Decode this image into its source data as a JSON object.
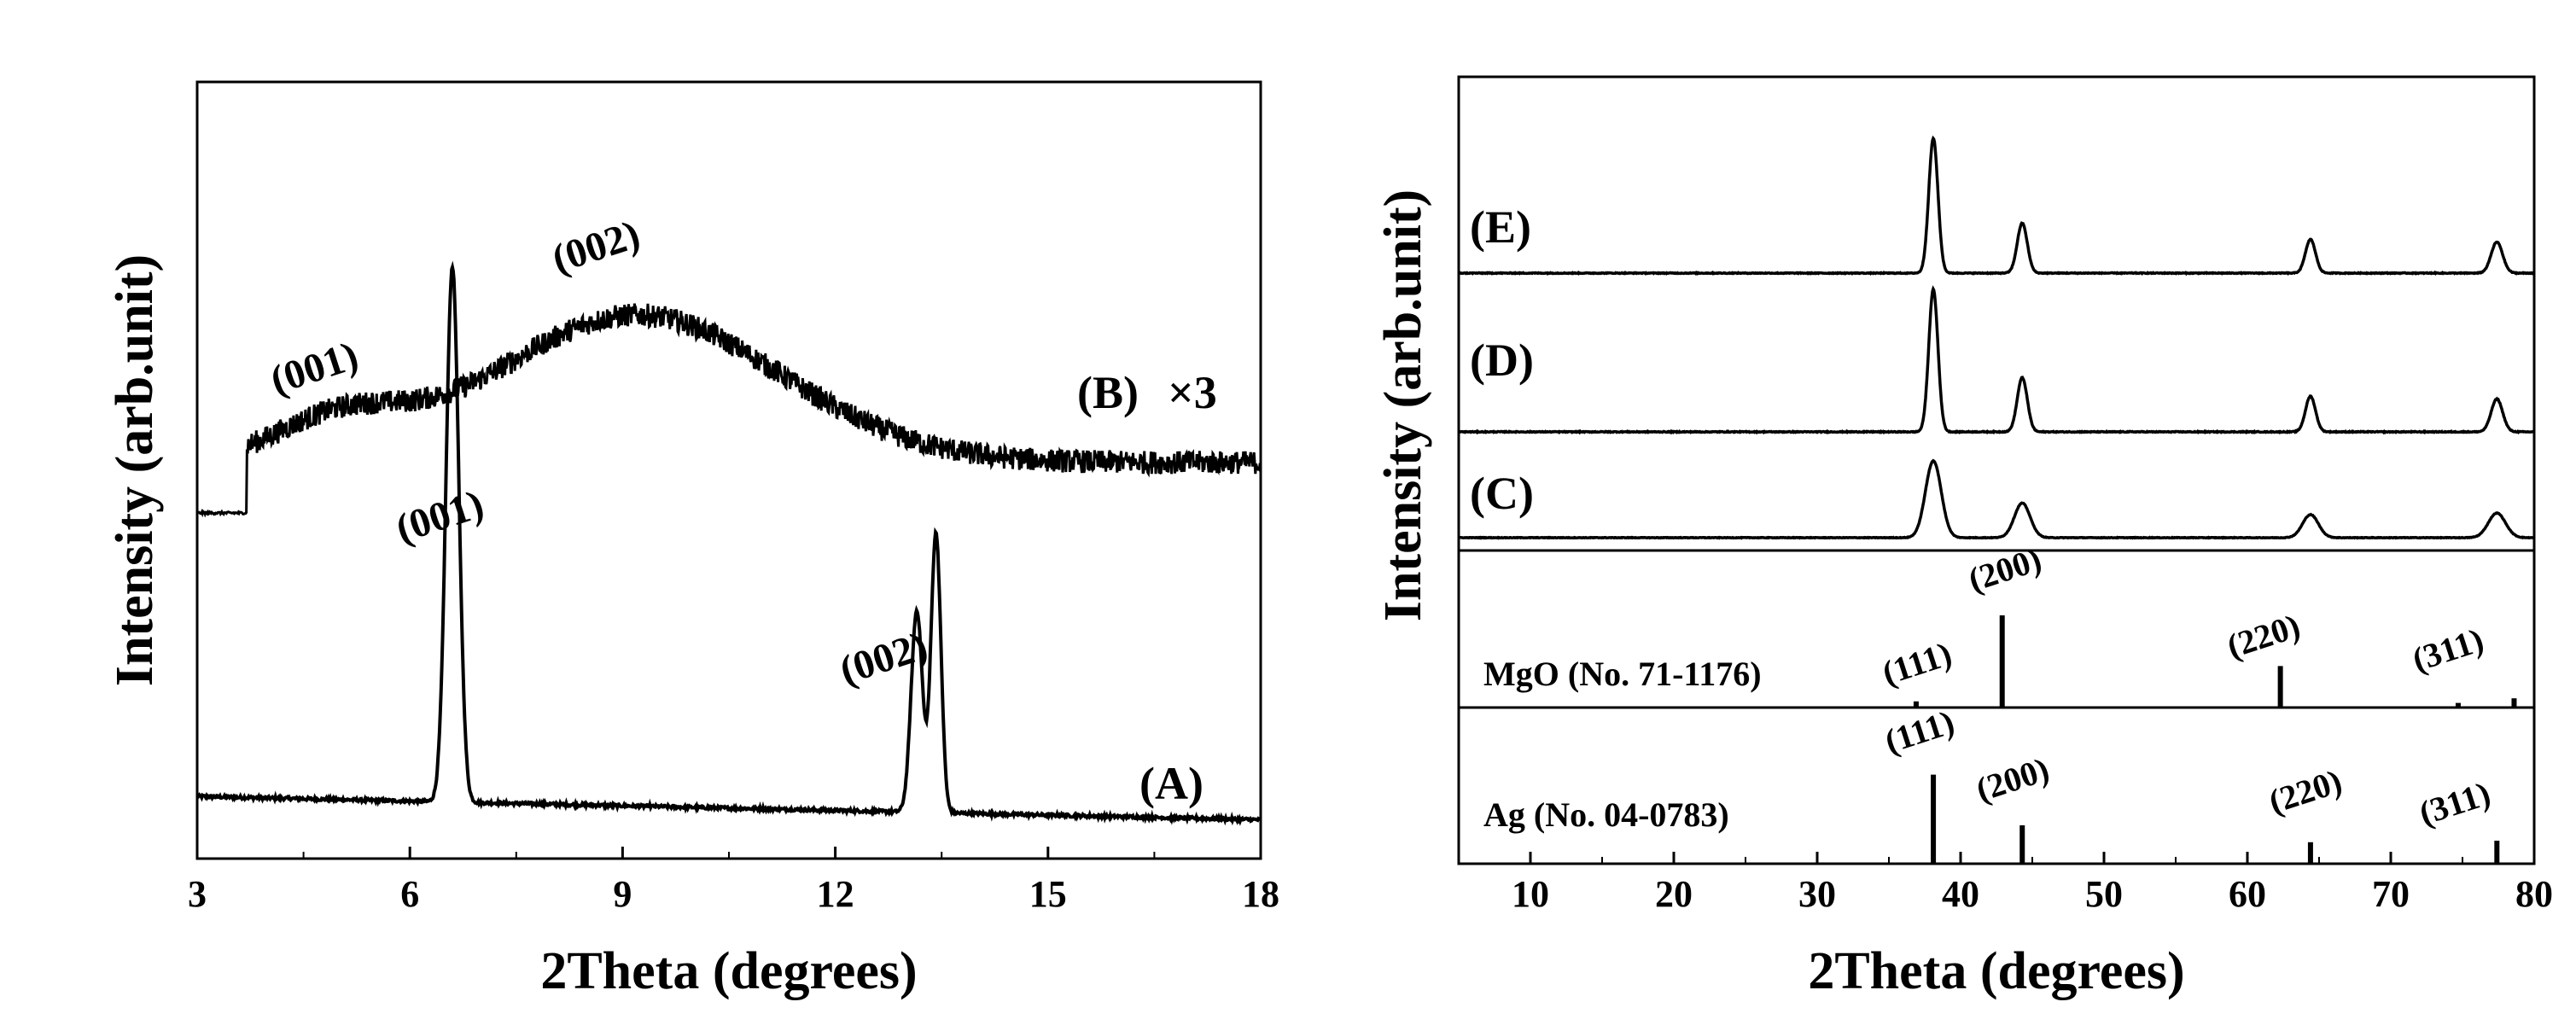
{
  "chart_data": [
    {
      "id": "left",
      "type": "line",
      "xlabel": "2Theta (degrees)",
      "ylabel": "Intensity (arb.unit)",
      "xlim": [
        3,
        18
      ],
      "xticks": [
        3,
        6,
        9,
        12,
        15,
        18
      ],
      "series": [
        {
          "name": "(A)",
          "label": "(A)",
          "baseline": 0.08,
          "noise": 0.004,
          "peaks": [
            {
              "center": 6.6,
              "height": 0.69,
              "width": 0.09
            },
            {
              "center": 13.15,
              "height": 0.26,
              "width": 0.08
            },
            {
              "center": 13.42,
              "height": 0.36,
              "width": 0.07
            }
          ],
          "peak_labels": [
            {
              "text": "(001)",
              "x": 6.6
            },
            {
              "text": "(002)",
              "x": 13.3
            }
          ]
        },
        {
          "name": "(B)",
          "label": "(B)",
          "multiplier_label": "×3",
          "baseline": 0.5,
          "noise": 0.03,
          "start_x": 3.0,
          "broad_humps": [
            {
              "center": 5.0,
              "height": 0.05,
              "width": 0.9
            },
            {
              "center": 9.2,
              "height": 0.19,
              "width": 2.0
            }
          ],
          "peak_labels": [
            {
              "text": "(001)",
              "x": 5.2
            },
            {
              "text": "(002)",
              "x": 9.3
            }
          ]
        }
      ]
    },
    {
      "id": "right",
      "type": "line",
      "xlabel": "2Theta (degrees)",
      "ylabel": "Intensity (arb.unit)",
      "xlim": [
        5,
        80
      ],
      "xticks": [
        10,
        20,
        30,
        40,
        50,
        60,
        70,
        80
      ],
      "series": [
        {
          "name": "(C)",
          "label": "(C)",
          "noise": 0.06,
          "peaks": [
            {
              "center": 38.1,
              "height": 1.0,
              "width": 0.55
            },
            {
              "center": 44.3,
              "height": 0.45,
              "width": 0.55
            },
            {
              "center": 64.4,
              "height": 0.3,
              "width": 0.55
            },
            {
              "center": 77.4,
              "height": 0.32,
              "width": 0.6
            }
          ]
        },
        {
          "name": "(D)",
          "label": "(D)",
          "noise": 0.05,
          "peaks": [
            {
              "center": 38.1,
              "height": 1.0,
              "width": 0.32
            },
            {
              "center": 44.3,
              "height": 0.38,
              "width": 0.35
            },
            {
              "center": 64.4,
              "height": 0.25,
              "width": 0.35
            },
            {
              "center": 77.4,
              "height": 0.23,
              "width": 0.4
            }
          ]
        },
        {
          "name": "(E)",
          "label": "(E)",
          "noise": 0.05,
          "peaks": [
            {
              "center": 38.1,
              "height": 1.0,
              "width": 0.32
            },
            {
              "center": 44.3,
              "height": 0.37,
              "width": 0.35
            },
            {
              "center": 64.4,
              "height": 0.25,
              "width": 0.35
            },
            {
              "center": 77.4,
              "height": 0.23,
              "width": 0.4
            }
          ]
        }
      ],
      "references": [
        {
          "name": "MgO (No. 71-1176)",
          "lines": [
            {
              "x": 36.9,
              "height": 0.04,
              "hkl": "(111)"
            },
            {
              "x": 42.9,
              "height": 0.6,
              "hkl": "(200)"
            },
            {
              "x": 62.3,
              "height": 0.27,
              "hkl": "(220)"
            },
            {
              "x": 74.7,
              "height": 0.03,
              "hkl": ""
            },
            {
              "x": 78.6,
              "height": 0.06,
              "hkl": "(311)"
            }
          ]
        },
        {
          "name": "Ag (No. 04-0783)",
          "lines": [
            {
              "x": 38.1,
              "height": 0.58,
              "hkl": "(111)"
            },
            {
              "x": 44.3,
              "height": 0.25,
              "hkl": "(200)"
            },
            {
              "x": 64.4,
              "height": 0.14,
              "hkl": "(220)"
            },
            {
              "x": 77.4,
              "height": 0.15,
              "hkl": "(311)"
            }
          ]
        }
      ]
    }
  ]
}
